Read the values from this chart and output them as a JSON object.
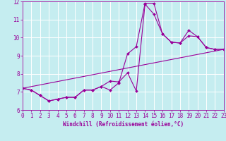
{
  "xlabel": "Windchill (Refroidissement éolien,°C)",
  "xlim": [
    0,
    23
  ],
  "ylim": [
    6,
    12
  ],
  "xticks": [
    0,
    1,
    2,
    3,
    4,
    5,
    6,
    7,
    8,
    9,
    10,
    11,
    12,
    13,
    14,
    15,
    16,
    17,
    18,
    19,
    20,
    21,
    22,
    23
  ],
  "yticks": [
    6,
    7,
    8,
    9,
    10,
    11,
    12
  ],
  "bg_color": "#c5edf0",
  "line_color": "#990099",
  "grid_color": "#b8dce0",
  "line1_x": [
    0,
    1,
    2,
    3,
    4,
    5,
    6,
    7,
    8,
    9,
    10,
    11,
    12,
    13,
    14,
    15,
    16,
    17,
    18,
    19,
    20,
    21,
    22,
    23
  ],
  "line1_y": [
    7.2,
    7.1,
    6.8,
    6.5,
    6.6,
    6.7,
    6.7,
    7.1,
    7.1,
    7.3,
    7.1,
    7.5,
    9.1,
    9.5,
    11.9,
    11.9,
    10.2,
    9.75,
    9.7,
    10.1,
    10.05,
    9.45,
    9.35,
    9.35
  ],
  "line2_x": [
    0,
    1,
    2,
    3,
    4,
    5,
    6,
    7,
    8,
    9,
    10,
    11,
    12,
    13,
    14,
    15,
    16,
    17,
    18,
    19,
    20,
    21,
    22,
    23
  ],
  "line2_y": [
    7.2,
    7.1,
    6.8,
    6.5,
    6.6,
    6.7,
    6.7,
    7.1,
    7.1,
    7.3,
    7.6,
    7.55,
    8.05,
    7.05,
    11.85,
    11.3,
    10.2,
    9.75,
    9.7,
    10.4,
    10.05,
    9.45,
    9.35,
    9.35
  ],
  "line3_x": [
    0,
    23
  ],
  "line3_y": [
    7.2,
    9.35
  ],
  "font_size": 5.5,
  "marker": "D",
  "marker_size": 2.0,
  "line_width": 0.8
}
